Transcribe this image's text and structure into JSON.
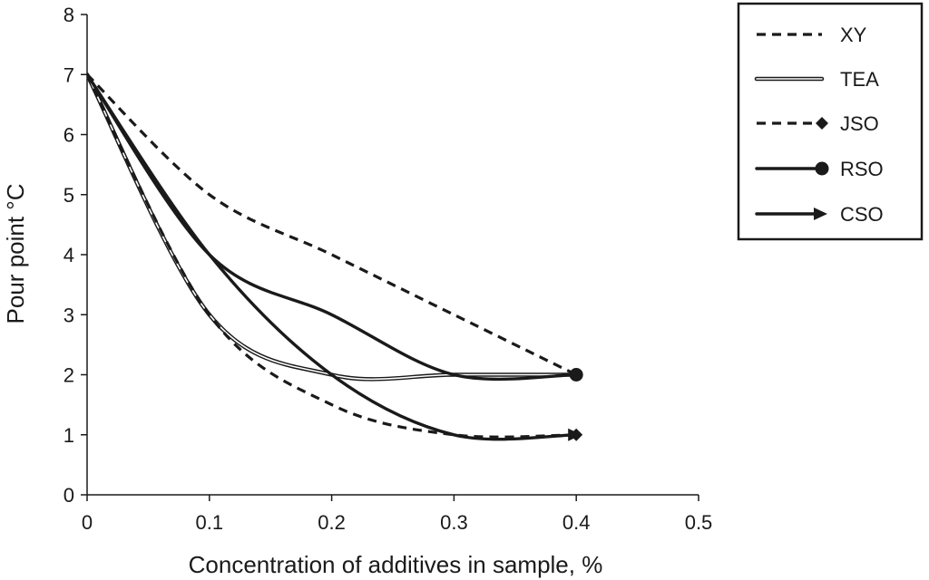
{
  "chart_data": {
    "type": "line",
    "title": "",
    "xlabel": "Concentration of additives in sample, %",
    "ylabel": "Pour point °C",
    "xlim": [
      0,
      0.5
    ],
    "ylim": [
      0,
      8
    ],
    "xticks": [
      0,
      0.1,
      0.2,
      0.3,
      0.4,
      0.5
    ],
    "xtick_labels": [
      "0",
      "0.1",
      "0.2",
      "0.3",
      "0.4",
      "0.5"
    ],
    "yticks": [
      0,
      1,
      2,
      3,
      4,
      5,
      6,
      7,
      8
    ],
    "ytick_labels": [
      "0",
      "1",
      "2",
      "3",
      "4",
      "5",
      "6",
      "7",
      "8"
    ],
    "grid": false,
    "legend_position": "top-right, outside plot area",
    "x": [
      0,
      0.1,
      0.2,
      0.3,
      0.4
    ],
    "series": [
      {
        "name": "XY",
        "style": "dashed",
        "marker": "none",
        "values": [
          7,
          5,
          4,
          3,
          2
        ]
      },
      {
        "name": "TEA",
        "style": "double-line",
        "marker": "none",
        "values": [
          7,
          3,
          2,
          2,
          2
        ]
      },
      {
        "name": "JSO",
        "style": "dashed",
        "marker": "diamond",
        "values": [
          7,
          3,
          1.5,
          1,
          1
        ]
      },
      {
        "name": "RSO",
        "style": "solid-bold",
        "marker": "circle",
        "values": [
          7,
          4,
          3,
          2,
          2
        ]
      },
      {
        "name": "CSO",
        "style": "solid-bold",
        "marker": "arrow",
        "values": [
          7,
          4,
          2,
          1,
          1
        ]
      }
    ],
    "colors": {
      "line": "#1a1a1a",
      "background": "#ffffff"
    }
  }
}
